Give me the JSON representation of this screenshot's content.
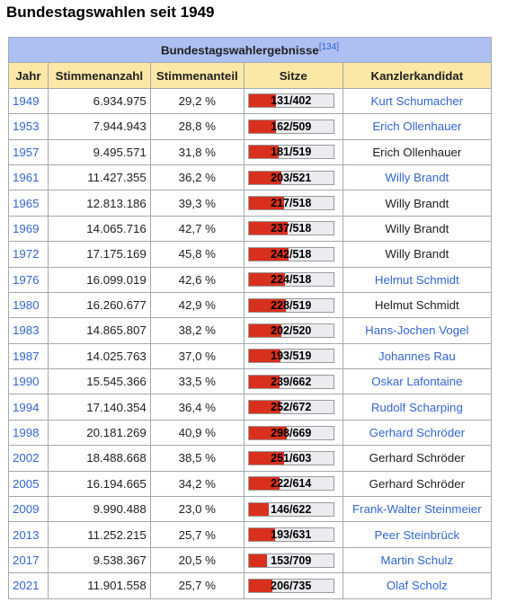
{
  "heading": "Bundestagswahlen seit 1949",
  "table": {
    "caption": "Bundestagswahlergebnisse",
    "caption_ref": "[134]",
    "columns": [
      "Jahr",
      "Stimmenanzahl",
      "Stimmenanteil",
      "Sitze",
      "Kanzlerkandidat"
    ],
    "bar_color": "#d9301e",
    "rows": [
      {
        "year": "1949",
        "votes": "6.934.975",
        "share": "29,2 %",
        "seats": "131/402",
        "seats_won": 131,
        "seats_total": 402,
        "candidate": "Kurt Schumacher",
        "candidate_link": true
      },
      {
        "year": "1953",
        "votes": "7.944.943",
        "share": "28,8 %",
        "seats": "162/509",
        "seats_won": 162,
        "seats_total": 509,
        "candidate": "Erich Ollenhauer",
        "candidate_link": true
      },
      {
        "year": "1957",
        "votes": "9.495.571",
        "share": "31,8 %",
        "seats": "181/519",
        "seats_won": 181,
        "seats_total": 519,
        "candidate": "Erich Ollenhauer",
        "candidate_link": false
      },
      {
        "year": "1961",
        "votes": "11.427.355",
        "share": "36,2 %",
        "seats": "203/521",
        "seats_won": 203,
        "seats_total": 521,
        "candidate": "Willy Brandt",
        "candidate_link": true
      },
      {
        "year": "1965",
        "votes": "12.813.186",
        "share": "39,3 %",
        "seats": "217/518",
        "seats_won": 217,
        "seats_total": 518,
        "candidate": "Willy Brandt",
        "candidate_link": false
      },
      {
        "year": "1969",
        "votes": "14.065.716",
        "share": "42,7 %",
        "seats": "237/518",
        "seats_won": 237,
        "seats_total": 518,
        "candidate": "Willy Brandt",
        "candidate_link": false
      },
      {
        "year": "1972",
        "votes": "17.175.169",
        "share": "45,8 %",
        "seats": "242/518",
        "seats_won": 242,
        "seats_total": 518,
        "candidate": "Willy Brandt",
        "candidate_link": false
      },
      {
        "year": "1976",
        "votes": "16.099.019",
        "share": "42,6 %",
        "seats": "224/518",
        "seats_won": 224,
        "seats_total": 518,
        "candidate": "Helmut Schmidt",
        "candidate_link": true
      },
      {
        "year": "1980",
        "votes": "16.260.677",
        "share": "42,9 %",
        "seats": "228/519",
        "seats_won": 228,
        "seats_total": 519,
        "candidate": "Helmut Schmidt",
        "candidate_link": false
      },
      {
        "year": "1983",
        "votes": "14.865.807",
        "share": "38,2 %",
        "seats": "202/520",
        "seats_won": 202,
        "seats_total": 520,
        "candidate": "Hans-Jochen Vogel",
        "candidate_link": true
      },
      {
        "year": "1987",
        "votes": "14.025.763",
        "share": "37,0 %",
        "seats": "193/519",
        "seats_won": 193,
        "seats_total": 519,
        "candidate": "Johannes Rau",
        "candidate_link": true
      },
      {
        "year": "1990",
        "votes": "15.545.366",
        "share": "33,5 %",
        "seats": "239/662",
        "seats_won": 239,
        "seats_total": 662,
        "candidate": "Oskar Lafontaine",
        "candidate_link": true
      },
      {
        "year": "1994",
        "votes": "17.140.354",
        "share": "36,4 %",
        "seats": "252/672",
        "seats_won": 252,
        "seats_total": 672,
        "candidate": "Rudolf Scharping",
        "candidate_link": true
      },
      {
        "year": "1998",
        "votes": "20.181.269",
        "share": "40,9 %",
        "seats": "298/669",
        "seats_won": 298,
        "seats_total": 669,
        "candidate": "Gerhard Schröder",
        "candidate_link": true
      },
      {
        "year": "2002",
        "votes": "18.488.668",
        "share": "38,5 %",
        "seats": "251/603",
        "seats_won": 251,
        "seats_total": 603,
        "candidate": "Gerhard Schröder",
        "candidate_link": false
      },
      {
        "year": "2005",
        "votes": "16.194.665",
        "share": "34,2 %",
        "seats": "222/614",
        "seats_won": 222,
        "seats_total": 614,
        "candidate": "Gerhard Schröder",
        "candidate_link": false
      },
      {
        "year": "2009",
        "votes": "9.990.488",
        "share": "23,0 %",
        "seats": "146/622",
        "seats_won": 146,
        "seats_total": 622,
        "candidate": "Frank-Walter Steinmeier",
        "candidate_link": true
      },
      {
        "year": "2013",
        "votes": "11.252.215",
        "share": "25,7 %",
        "seats": "193/631",
        "seats_won": 193,
        "seats_total": 631,
        "candidate": "Peer Steinbrück",
        "candidate_link": true
      },
      {
        "year": "2017",
        "votes": "9.538.367",
        "share": "20,5 %",
        "seats": "153/709",
        "seats_won": 153,
        "seats_total": 709,
        "candidate": "Martin Schulz",
        "candidate_link": true
      },
      {
        "year": "2021",
        "votes": "11.901.558",
        "share": "25,7 %",
        "seats": "206/735",
        "seats_won": 206,
        "seats_total": 735,
        "candidate": "Olaf Scholz",
        "candidate_link": true
      }
    ]
  }
}
